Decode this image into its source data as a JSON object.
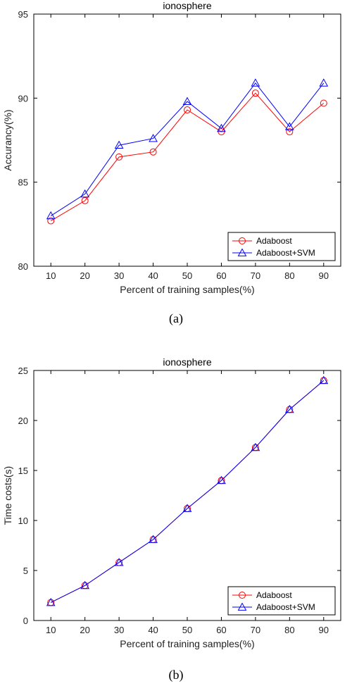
{
  "chart_data": [
    {
      "type": "line",
      "title": "ionosphere",
      "xlabel": "Percent of training samples(%)",
      "ylabel": "Accurancy(%)",
      "x": [
        10,
        20,
        30,
        40,
        50,
        60,
        70,
        80,
        90
      ],
      "xlim": [
        5,
        95
      ],
      "ylim": [
        80,
        95
      ],
      "xticks": [
        10,
        20,
        30,
        40,
        50,
        60,
        70,
        80,
        90
      ],
      "yticks": [
        80,
        85,
        90,
        95
      ],
      "grid": false,
      "legend_position": "bottom-right",
      "series": [
        {
          "name": "Adaboost",
          "color": "#ff0000",
          "marker": "circle",
          "values": [
            82.7,
            83.9,
            86.5,
            86.8,
            89.3,
            88.0,
            90.3,
            88.0,
            89.7
          ]
        },
        {
          "name": "Adaboost+SVM",
          "color": "#0000ff",
          "marker": "triangle",
          "values": [
            83.0,
            84.3,
            87.2,
            87.6,
            89.8,
            88.2,
            90.9,
            88.3,
            90.9
          ]
        }
      ],
      "caption": "(a)"
    },
    {
      "type": "line",
      "title": "ionosphere",
      "xlabel": "Percent of training samples(%)",
      "ylabel": "Time costs(s)",
      "x": [
        10,
        20,
        30,
        40,
        50,
        60,
        70,
        80,
        90
      ],
      "xlim": [
        5,
        95
      ],
      "ylim": [
        0,
        25
      ],
      "xticks": [
        10,
        20,
        30,
        40,
        50,
        60,
        70,
        80,
        90
      ],
      "yticks": [
        0,
        5,
        10,
        15,
        20,
        25
      ],
      "grid": false,
      "legend_position": "bottom-right",
      "series": [
        {
          "name": "Adaboost",
          "color": "#ff0000",
          "marker": "circle",
          "values": [
            1.8,
            3.5,
            5.8,
            8.1,
            11.2,
            14.0,
            17.3,
            21.1,
            24.0
          ]
        },
        {
          "name": "Adaboost+SVM",
          "color": "#0000ff",
          "marker": "triangle",
          "values": [
            1.8,
            3.5,
            5.8,
            8.1,
            11.2,
            14.0,
            17.3,
            21.1,
            24.0
          ]
        }
      ],
      "caption": "(b)"
    }
  ]
}
